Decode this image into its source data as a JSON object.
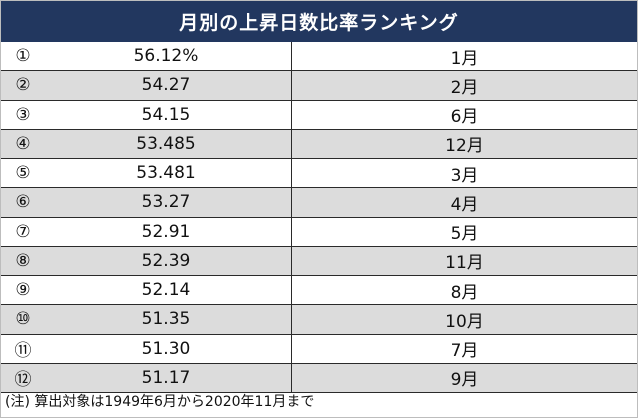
{
  "chart_data": {
    "type": "table",
    "title": "月別の上昇日数比率ランキング",
    "rows": [
      {
        "rank": "①",
        "value": "56.12%",
        "month": "1月"
      },
      {
        "rank": "②",
        "value": "54.27",
        "month": "2月"
      },
      {
        "rank": "③",
        "value": "54.15",
        "month": "6月"
      },
      {
        "rank": "④",
        "value": "53.485",
        "month": "12月"
      },
      {
        "rank": "⑤",
        "value": "53.481",
        "month": "3月"
      },
      {
        "rank": "⑥",
        "value": "53.27",
        "month": "4月"
      },
      {
        "rank": "⑦",
        "value": "52.91",
        "month": "5月"
      },
      {
        "rank": "⑧",
        "value": "52.39",
        "month": "11月"
      },
      {
        "rank": "⑨",
        "value": "52.14",
        "month": "8月"
      },
      {
        "rank": "⑩",
        "value": "51.35",
        "month": "10月"
      },
      {
        "rank": "⑪",
        "value": "51.30",
        "month": "7月"
      },
      {
        "rank": "⑫",
        "value": "51.17",
        "month": "9月"
      }
    ],
    "note": "(注) 算出対象は1949年6月から2020年11月まで"
  },
  "colors": {
    "header_bg": "#22375f",
    "header_text": "#ffffff",
    "stripe": "#dcdcdc"
  }
}
